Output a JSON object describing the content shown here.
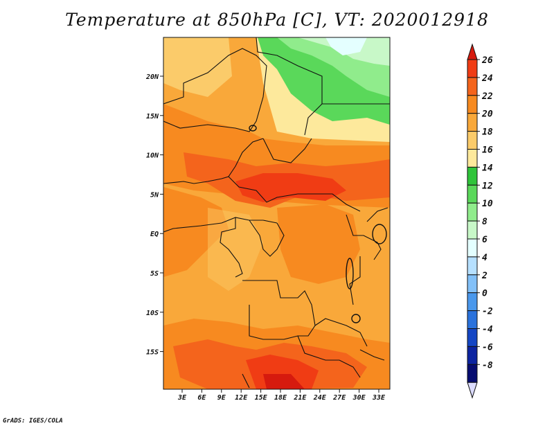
{
  "title": "Temperature at 850hPa [C], VT: 2020012918",
  "credit": "GrADS: IGES/COLA",
  "lon_ticks": [
    "3E",
    "6E",
    "9E",
    "12E",
    "15E",
    "18E",
    "21E",
    "24E",
    "27E",
    "30E",
    "33E"
  ],
  "lat_ticks": [
    "20N",
    "15N",
    "10N",
    "5N",
    "EQ",
    "5S",
    "10S",
    "15S"
  ],
  "colorbar": {
    "levels": [
      "26",
      "24",
      "22",
      "20",
      "18",
      "16",
      "14",
      "12",
      "10",
      "8",
      "6",
      "4",
      "2",
      "0",
      "-2",
      "-4",
      "-6",
      "-8"
    ],
    "colors": [
      "#d61a0e",
      "#f03c14",
      "#f4641c",
      "#f78a20",
      "#f9a83a",
      "#fbcb6a",
      "#fde99c",
      "#2fc43a",
      "#5ad85a",
      "#90ec8c",
      "#c8f8c8",
      "#e4ffff",
      "#b6e0ff",
      "#82c0f8",
      "#4a98ec",
      "#2a72dc",
      "#1446c4",
      "#0c24a0",
      "#060c70",
      "#dcdcff"
    ]
  }
}
